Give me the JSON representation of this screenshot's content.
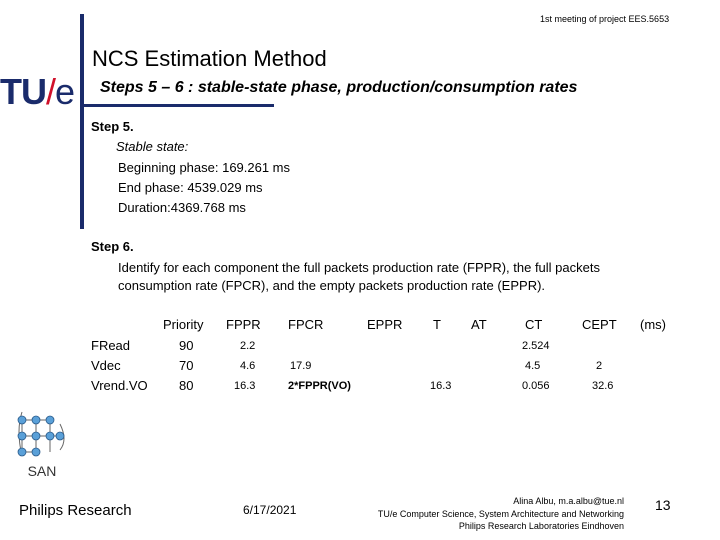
{
  "header": "1st meeting of project EES.5653",
  "title": "NCS Estimation Method",
  "subtitle": "Steps 5 – 6 : stable-state phase, production/consumption rates",
  "logo": {
    "tu": "TU",
    "slash": "/",
    "e": "e"
  },
  "step5": {
    "heading": "Step 5.",
    "stable_label": "Stable state:",
    "beginning": "Beginning phase: 169.261 ms",
    "end": "End phase: 4539.029 ms",
    "duration": "Duration:4369.768 ms"
  },
  "step6": {
    "heading": "Step 6.",
    "line1": "Identify for each component the full packets production rate (FPPR), the full packets",
    "line2": "consumption rate (FPCR), and the empty packets production rate (EPPR)."
  },
  "table": {
    "headers": {
      "priority": "Priority",
      "fppr": "FPPR",
      "fpcr": "FPCR",
      "eppr": "EPPR",
      "t": "T",
      "at": "AT",
      "ct": "CT",
      "cept": "CEPT",
      "unit": "(ms)"
    },
    "rows": [
      {
        "name": "FRead",
        "priority": "90",
        "fppr": "2.2",
        "fpcr": "",
        "t": "",
        "ct": "2.524",
        "cept": ""
      },
      {
        "name": "Vdec",
        "priority": "70",
        "fppr": "4.6",
        "fpcr": "17.9",
        "t": "",
        "ct": "4.5",
        "cept": "2"
      },
      {
        "name": "Vrend.VO",
        "priority": "80",
        "fppr": "16.3",
        "fpcr": "2*FPPR(VO)",
        "t": "16.3",
        "ct": "0.056",
        "cept": "32.6"
      }
    ]
  },
  "san_label": "SAN",
  "footer": {
    "left": "Philips Research",
    "date": "6/17/2021",
    "author1": "Alina Albu, m.a.albu@tue.nl",
    "author2": "TU/e Computer Science, System Architecture and Networking",
    "author3": "Philips Research Laboratories Eindhoven",
    "page": "13"
  },
  "colors": {
    "brand_blue": "#1a2b6b",
    "brand_red": "#d0102a",
    "san_blue": "#5aa0d8"
  }
}
